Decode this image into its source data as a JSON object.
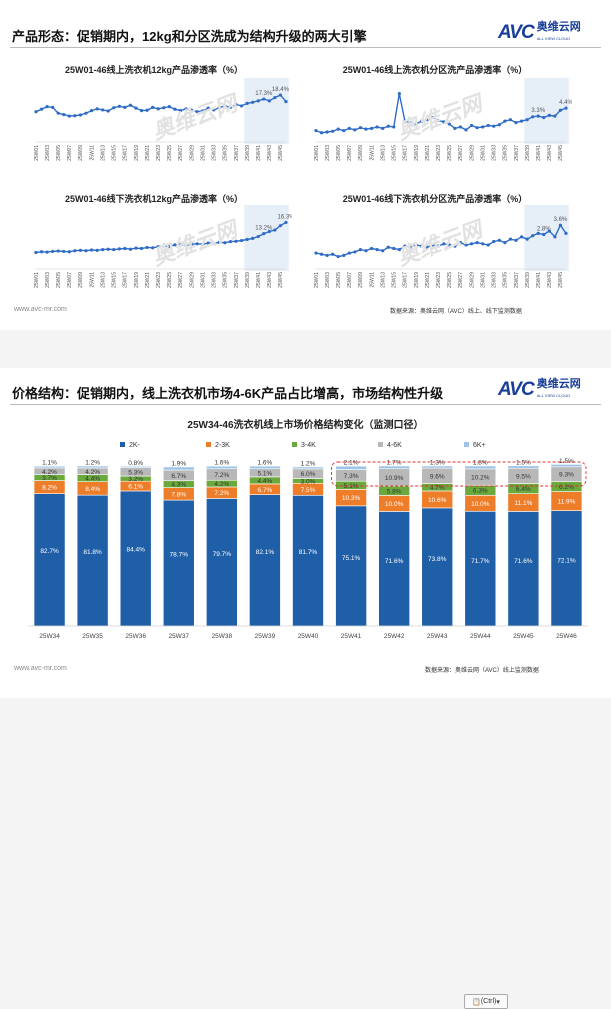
{
  "slide1": {
    "title": "产品形态：促销期内，12kg和分区洗成为结构升级的两大引擎",
    "logo_text": "AVC",
    "logo_cn": "奥维云网",
    "logo_en": "ALL VIEW CLOUD",
    "footer_url": "www.avc-mr.com",
    "footer_source": "数据来源：奥维云网（AVC）线上、线下监测数据"
  },
  "slide2": {
    "title": "价格结构：促销期内，线上洗衣机市场4-6K产品占比增高，市场结构性升级",
    "logo_text": "AVC",
    "logo_cn": "奥维云网",
    "logo_en": "ALL VIEW CLOUD",
    "footer_url": "www.avc-mr.com",
    "footer_source": "数据来源：奥维云网（AVC）线上监测数据",
    "ctrl_label": "(Ctrl)"
  },
  "watermark": "奥维云网",
  "colors": {
    "line": "#2e6bc7",
    "highlight": "#e6eef8",
    "s2k": "#1f5fa8",
    "s23k": "#ee7d2a",
    "s34k": "#6aaa3c",
    "s46k": "#b8b8b8",
    "s6k": "#9cc3e8",
    "dash": "#e03030"
  },
  "chart_data": [
    {
      "type": "line",
      "title": "25W01-46线上洗衣机12kg产品渗透率（%）",
      "x": [
        "25W01",
        "25W02",
        "25W03",
        "25W04",
        "25W05",
        "25W06",
        "25W07",
        "25W08",
        "25W09",
        "25W10",
        "25W11",
        "25W12",
        "25W13",
        "25W14",
        "25W15",
        "25W16",
        "25W17",
        "25W18",
        "25W19",
        "25W20",
        "25W21",
        "25W22",
        "25W23",
        "25W24",
        "25W25",
        "25W26",
        "25W27",
        "25W28",
        "25W29",
        "25W30",
        "25W31",
        "25W32",
        "25W33",
        "25W34",
        "25W35",
        "25W36",
        "25W37",
        "25W38",
        "25W39",
        "25W40",
        "25W41",
        "25W42",
        "25W43",
        "25W44",
        "25W45",
        "25W46"
      ],
      "values": [
        13.8,
        14.5,
        15.2,
        15.0,
        13.4,
        13.0,
        12.6,
        12.7,
        12.9,
        13.4,
        14.1,
        14.6,
        14.3,
        14.0,
        14.9,
        15.3,
        15.0,
        15.6,
        14.8,
        14.1,
        14.2,
        15.0,
        14.6,
        14.9,
        15.2,
        14.5,
        14.1,
        14.6,
        14.2,
        13.8,
        14.0,
        14.8,
        14.3,
        14.9,
        15.4,
        15.0,
        15.8,
        15.4,
        16.1,
        16.4,
        16.8,
        17.3,
        16.8,
        17.7,
        18.4,
        16.6
      ],
      "highlight_from": "25W39",
      "labels": [
        {
          "text": "17.3%",
          "at": "25W42"
        },
        {
          "text": "18.4%",
          "at": "25W45"
        }
      ],
      "ylim": [
        6,
        22
      ]
    },
    {
      "type": "line",
      "title": "25W01-46线上洗衣机分区洗产品渗透率（%）",
      "x": [
        "25W01",
        "25W02",
        "25W03",
        "25W04",
        "25W05",
        "25W06",
        "25W07",
        "25W08",
        "25W09",
        "25W10",
        "25W11",
        "25W12",
        "25W13",
        "25W14",
        "25W15",
        "25W16",
        "25W17",
        "25W18",
        "25W19",
        "25W20",
        "25W21",
        "25W22",
        "25W23",
        "25W24",
        "25W25",
        "25W26",
        "25W27",
        "25W28",
        "25W29",
        "25W30",
        "25W31",
        "25W32",
        "25W33",
        "25W34",
        "25W35",
        "25W36",
        "25W37",
        "25W38",
        "25W39",
        "25W40",
        "25W41",
        "25W42",
        "25W43",
        "25W44",
        "25W45",
        "25W46"
      ],
      "values": [
        1.3,
        1.0,
        1.1,
        1.2,
        1.5,
        1.3,
        1.6,
        1.4,
        1.7,
        1.5,
        1.6,
        1.8,
        1.6,
        1.9,
        1.8,
        6.4,
        2.6,
        2.4,
        2.2,
        2.6,
        2.8,
        3.1,
        2.7,
        2.5,
        2.2,
        1.6,
        1.8,
        1.4,
        2.0,
        1.7,
        1.8,
        2.0,
        1.9,
        2.1,
        2.6,
        2.8,
        2.4,
        2.6,
        2.8,
        3.2,
        3.3,
        3.1,
        3.4,
        3.3,
        4.1,
        4.4
      ],
      "highlight_from": "25W39",
      "labels": [
        {
          "text": "3.3%",
          "at": "25W41"
        },
        {
          "text": "4.4%",
          "at": "25W46"
        }
      ],
      "ylim": [
        0,
        8
      ]
    },
    {
      "type": "line",
      "title": "25W01-46线下洗衣机12kg产品渗透率（%）",
      "x": [
        "25W01",
        "25W02",
        "25W03",
        "25W04",
        "25W05",
        "25W06",
        "25W07",
        "25W08",
        "25W09",
        "25W10",
        "25W11",
        "25W12",
        "25W13",
        "25W14",
        "25W15",
        "25W16",
        "25W17",
        "25W18",
        "25W19",
        "25W20",
        "25W21",
        "25W22",
        "25W23",
        "25W24",
        "25W25",
        "25W26",
        "25W27",
        "25W28",
        "25W29",
        "25W30",
        "25W31",
        "25W32",
        "25W33",
        "25W34",
        "25W35",
        "25W36",
        "25W37",
        "25W38",
        "25W39",
        "25W40",
        "25W41",
        "25W42",
        "25W43",
        "25W44",
        "25W45",
        "25W46"
      ],
      "values": [
        8.0,
        8.2,
        8.1,
        8.3,
        8.4,
        8.3,
        8.2,
        8.5,
        8.6,
        8.5,
        8.7,
        8.6,
        8.8,
        8.9,
        8.8,
        9.0,
        9.1,
        8.9,
        9.2,
        9.1,
        9.4,
        9.3,
        9.6,
        9.8,
        9.7,
        10.1,
        10.2,
        10.0,
        10.3,
        10.4,
        10.3,
        10.6,
        10.5,
        10.8,
        10.7,
        11.0,
        11.1,
        11.3,
        11.6,
        11.9,
        12.4,
        13.2,
        13.8,
        14.2,
        15.4,
        16.3
      ],
      "highlight_from": "25W39",
      "labels": [
        {
          "text": "13.2%",
          "at": "25W42"
        },
        {
          "text": "16.3%",
          "at": "25W46"
        }
      ],
      "ylim": [
        4,
        20
      ]
    },
    {
      "type": "line",
      "title": "25W01-46线下洗衣机分区洗产品渗透率（%）",
      "x": [
        "25W01",
        "25W02",
        "25W03",
        "25W04",
        "25W05",
        "25W06",
        "25W07",
        "25W08",
        "25W09",
        "25W10",
        "25W11",
        "25W12",
        "25W13",
        "25W14",
        "25W15",
        "25W16",
        "25W17",
        "25W18",
        "25W19",
        "25W20",
        "25W21",
        "25W22",
        "25W23",
        "25W24",
        "25W25",
        "25W26",
        "25W27",
        "25W28",
        "25W29",
        "25W30",
        "25W31",
        "25W32",
        "25W33",
        "25W34",
        "25W35",
        "25W36",
        "25W37",
        "25W38",
        "25W39",
        "25W40",
        "25W41",
        "25W42",
        "25W43",
        "25W44",
        "25W45",
        "25W46"
      ],
      "values": [
        1.2,
        1.1,
        1.0,
        1.1,
        0.9,
        1.0,
        1.2,
        1.3,
        1.5,
        1.4,
        1.6,
        1.5,
        1.4,
        1.7,
        1.6,
        1.5,
        1.8,
        1.7,
        1.9,
        1.8,
        1.7,
        1.9,
        1.8,
        2.0,
        1.9,
        1.8,
        2.1,
        1.9,
        2.0,
        2.1,
        2.0,
        1.9,
        2.2,
        2.3,
        2.1,
        2.4,
        2.3,
        2.6,
        2.4,
        2.7,
        2.9,
        2.8,
        3.1,
        2.6,
        3.6,
        2.9
      ],
      "highlight_from": "25W39",
      "labels": [
        {
          "text": "2.8%",
          "at": "25W42"
        },
        {
          "text": "3.6%",
          "at": "25W45"
        }
      ],
      "ylim": [
        0,
        5
      ]
    },
    {
      "type": "bar",
      "stacked": true,
      "title": "25W34-46洗衣机线上市场价格结构变化（监测口径）",
      "categories": [
        "25W34",
        "25W35",
        "25W36",
        "25W37",
        "25W38",
        "25W39",
        "25W40",
        "25W41",
        "25W42",
        "25W43",
        "25W44",
        "25W45",
        "25W46"
      ],
      "series": [
        {
          "name": "2K-",
          "values": [
            82.7,
            81.8,
            84.4,
            78.7,
            79.7,
            82.1,
            81.7,
            75.1,
            71.6,
            73.8,
            71.7,
            71.6,
            72.1
          ]
        },
        {
          "name": "2-3K",
          "values": [
            8.2,
            8.4,
            6.1,
            7.8,
            7.2,
            6.7,
            7.5,
            10.3,
            10.0,
            10.6,
            10.0,
            11.1,
            11.9
          ]
        },
        {
          "name": "3-4K",
          "values": [
            3.7,
            4.4,
            3.2,
            4.3,
            4.2,
            4.4,
            3.0,
            5.1,
            5.8,
            4.7,
            6.3,
            6.4,
            6.2
          ]
        },
        {
          "name": "4-6K",
          "values": [
            4.2,
            4.2,
            5.3,
            6.7,
            7.2,
            5.1,
            6.0,
            7.3,
            10.9,
            9.6,
            10.2,
            9.5,
            9.3
          ]
        },
        {
          "name": "6K+",
          "values": [
            1.1,
            1.2,
            0.8,
            1.9,
            1.6,
            1.6,
            1.2,
            2.1,
            1.7,
            1.3,
            1.8,
            1.5,
            1.5
          ]
        }
      ],
      "labels": {
        "2K-": [
          "82.7%",
          "81.8%",
          "84.4%",
          "78.7%",
          "79.7%",
          "82.1%",
          "81.7%",
          "75.1%",
          "71.6%",
          "73.8%",
          "71.7%",
          "71.6%",
          "72.1%"
        ],
        "2-3K": [
          "8.2%",
          "8.4%",
          "6.1%",
          "7.8%",
          "7.2%",
          "6.7%",
          "7.5%",
          "10.3%",
          "10.0%",
          "10.6%",
          "10.0%",
          "11.1%",
          "11.9%"
        ],
        "3-4K": [
          "3.7%",
          "4.4%",
          "3.2%",
          "4.3%",
          "4.2%",
          "4.4%",
          "3.0%",
          "5.1%",
          "5.8%",
          "4.7%",
          "6.3%",
          "6.4%",
          "6.2%"
        ],
        "4-6K": [
          "4.2%",
          "4.2%",
          "5.3%",
          "6.7%",
          "7.2%",
          "5.1%",
          "6.0%",
          "7.3%",
          "10.9%",
          "9.6%",
          "10.2%",
          "9.5%",
          "9.3%"
        ],
        "6K+": [
          "1.1%",
          "1.2%",
          "0.8%",
          "1.9%",
          "1.6%",
          "1.6%",
          "1.2%",
          "2.1%",
          "1.7%",
          "1.3%",
          "1.8%",
          "1.5%",
          "1.5%"
        ]
      },
      "highlight_from": "25W41",
      "ylim": [
        0,
        100
      ],
      "legend": "top"
    }
  ]
}
